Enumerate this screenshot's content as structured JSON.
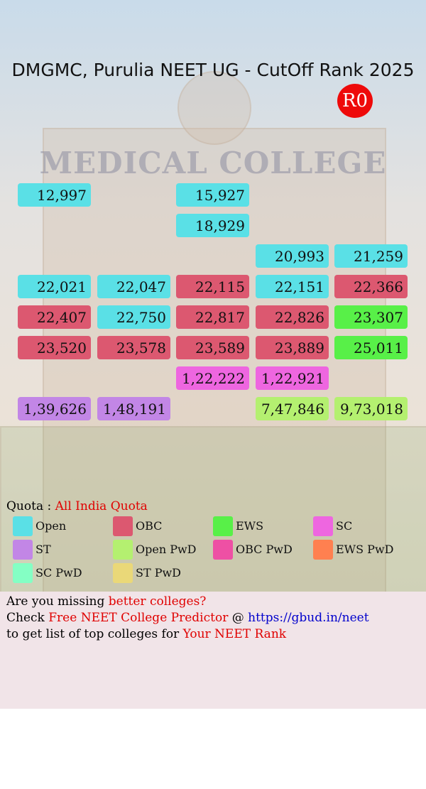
{
  "header": {
    "title": "DMGMC, Purulia NEET UG - CutOff Rank 2025",
    "round": "R0",
    "sign": "MEDICAL COLLEGE"
  },
  "grid": {
    "cells": [
      {
        "row": 0,
        "col": 0,
        "text": "12,997",
        "category": 0
      },
      {
        "row": 0,
        "col": 2,
        "text": "15,927",
        "category": 0
      },
      {
        "row": 1,
        "col": 2,
        "text": "18,929",
        "category": 0
      },
      {
        "row": 2,
        "col": 3,
        "text": "20,993",
        "category": 0
      },
      {
        "row": 2,
        "col": 4,
        "text": "21,259",
        "category": 0
      },
      {
        "row": 3,
        "col": 0,
        "text": "22,021",
        "category": 0
      },
      {
        "row": 3,
        "col": 1,
        "text": "22,047",
        "category": 0
      },
      {
        "row": 3,
        "col": 2,
        "text": "22,115",
        "category": 1
      },
      {
        "row": 3,
        "col": 3,
        "text": "22,151",
        "category": 0
      },
      {
        "row": 3,
        "col": 4,
        "text": "22,366",
        "category": 1
      },
      {
        "row": 4,
        "col": 0,
        "text": "22,407",
        "category": 1
      },
      {
        "row": 4,
        "col": 1,
        "text": "22,750",
        "category": 0
      },
      {
        "row": 4,
        "col": 2,
        "text": "22,817",
        "category": 1
      },
      {
        "row": 4,
        "col": 3,
        "text": "22,826",
        "category": 1
      },
      {
        "row": 4,
        "col": 4,
        "text": "23,307",
        "category": 2
      },
      {
        "row": 5,
        "col": 0,
        "text": "23,520",
        "category": 1
      },
      {
        "row": 5,
        "col": 1,
        "text": "23,578",
        "category": 1
      },
      {
        "row": 5,
        "col": 2,
        "text": "23,589",
        "category": 1
      },
      {
        "row": 5,
        "col": 3,
        "text": "23,889",
        "category": 1
      },
      {
        "row": 5,
        "col": 4,
        "text": "25,011",
        "category": 2
      },
      {
        "row": 6,
        "col": 2,
        "text": "1,22,222",
        "category": 3
      },
      {
        "row": 6,
        "col": 3,
        "text": "1,22,921",
        "category": 3
      },
      {
        "row": 7,
        "col": 0,
        "text": "1,39,626",
        "category": 4
      },
      {
        "row": 7,
        "col": 1,
        "text": "1,48,191",
        "category": 4
      },
      {
        "row": 7,
        "col": 3,
        "text": "7,47,846",
        "category": 5
      },
      {
        "row": 7,
        "col": 4,
        "text": "9,73,018",
        "category": 5
      }
    ]
  },
  "quota": {
    "label": "Quota :",
    "value": "All India Quota"
  },
  "legend": [
    {
      "name": "Open",
      "color": "#5ae0e6"
    },
    {
      "name": "OBC",
      "color": "#dc5870"
    },
    {
      "name": "EWS",
      "color": "#58f048"
    },
    {
      "name": "SC",
      "color": "#ee66e0"
    },
    {
      "name": "ST",
      "color": "#c286e6"
    },
    {
      "name": "Open PwD",
      "color": "#b4f070"
    },
    {
      "name": "OBC PwD",
      "color": "#ee50a4"
    },
    {
      "name": "EWS PwD",
      "color": "#ff8050"
    },
    {
      "name": "SC PwD",
      "color": "#84ffc4"
    },
    {
      "name": "ST PwD",
      "color": "#ead878"
    }
  ],
  "footer": [
    [
      {
        "text": "Are you missing ",
        "color": "#000000"
      },
      {
        "text": "better colleges?",
        "color": "#e00000"
      }
    ],
    [
      {
        "text": "Check ",
        "color": "#000000"
      },
      {
        "text": "Free NEET College Predictor",
        "color": "#e00000"
      },
      {
        "text": " @ ",
        "color": "#000000"
      },
      {
        "text": "https://gbud.in/neet",
        "color": "#0000cc"
      }
    ],
    [
      {
        "text": "to get list of top colleges for ",
        "color": "#000000"
      },
      {
        "text": "Your NEET Rank",
        "color": "#e00000"
      }
    ]
  ]
}
